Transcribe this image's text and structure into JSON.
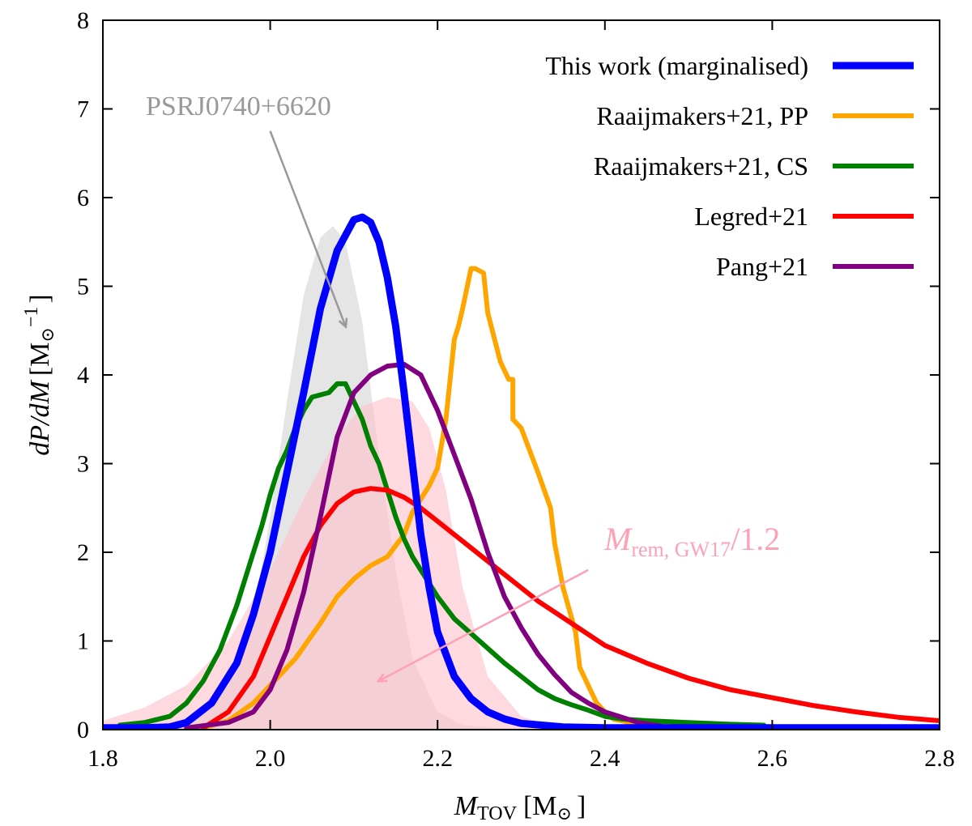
{
  "chart_data": {
    "type": "line",
    "title": "",
    "xlabel": {
      "main": "M",
      "sub": "TOV",
      "unit": "[M",
      "sun": "⊙",
      "close": "]"
    },
    "ylabel": {
      "main": "dP/dM",
      "unit": "[M",
      "sun": "⊙",
      "exp": "−1",
      "close": "]"
    },
    "xlim": [
      1.8,
      2.8
    ],
    "ylim": [
      0,
      8
    ],
    "xticks": [
      1.8,
      2.0,
      2.2,
      2.4,
      2.6,
      2.8
    ],
    "xtick_labels": [
      "1.8",
      "2.0",
      "2.2",
      "2.4",
      "2.6",
      "2.8"
    ],
    "yticks": [
      0,
      1,
      2,
      3,
      4,
      5,
      6,
      7,
      8
    ],
    "ytick_labels": [
      "0",
      "1",
      "2",
      "3",
      "4",
      "5",
      "6",
      "7",
      "8"
    ],
    "grid": false,
    "legend_position": "top-right",
    "filled_areas": [
      {
        "name": "PSRJ0740+6620",
        "color": "#d3d3d3",
        "opacity": 0.6,
        "label_color": "#999999",
        "x": [
          1.8,
          1.9,
          1.95,
          1.98,
          2.0,
          2.02,
          2.04,
          2.06,
          2.075,
          2.09,
          2.11,
          2.13,
          2.15,
          2.17,
          2.2,
          2.23,
          2.3
        ],
        "y": [
          0.0,
          0.08,
          0.5,
          1.3,
          2.4,
          3.7,
          4.9,
          5.55,
          5.68,
          5.5,
          4.6,
          3.1,
          1.8,
          0.8,
          0.2,
          0.05,
          0.0
        ]
      },
      {
        "name": "M_rem,GW17/1.2",
        "color": "#ffc0cb",
        "opacity": 0.6,
        "label_color": "#ffa0b4",
        "label_main": "M",
        "label_sub": "rem, GW17",
        "label_suffix": "/1.2",
        "x": [
          1.8,
          1.85,
          1.9,
          1.95,
          2.0,
          2.04,
          2.08,
          2.11,
          2.14,
          2.17,
          2.19,
          2.21,
          2.23,
          2.26,
          2.3,
          2.34,
          2.38
        ],
        "y": [
          0.1,
          0.25,
          0.5,
          1.0,
          1.8,
          2.6,
          3.3,
          3.65,
          3.75,
          3.7,
          3.4,
          2.7,
          1.6,
          0.6,
          0.15,
          0.03,
          0.0
        ]
      }
    ],
    "series": [
      {
        "name": "This work (marginalised)",
        "color": "#0000ff",
        "width": 9,
        "x": [
          1.8,
          1.85,
          1.88,
          1.9,
          1.93,
          1.96,
          1.98,
          2.0,
          2.02,
          2.04,
          2.06,
          2.08,
          2.1,
          2.11,
          2.12,
          2.13,
          2.14,
          2.15,
          2.16,
          2.17,
          2.18,
          2.19,
          2.2,
          2.22,
          2.24,
          2.26,
          2.28,
          2.3,
          2.35,
          2.4,
          2.5,
          2.8
        ],
        "y": [
          0.02,
          0.02,
          0.03,
          0.08,
          0.3,
          0.75,
          1.3,
          2.0,
          2.9,
          3.8,
          4.75,
          5.4,
          5.75,
          5.78,
          5.72,
          5.5,
          5.1,
          4.55,
          3.8,
          3.0,
          2.2,
          1.6,
          1.1,
          0.6,
          0.35,
          0.2,
          0.12,
          0.07,
          0.03,
          0.02,
          0.02,
          0.02
        ]
      },
      {
        "name": "Raaijmakers+21, PP",
        "color": "#ffa500",
        "width": 6,
        "x": [
          1.92,
          1.95,
          1.98,
          2.0,
          2.03,
          2.06,
          2.08,
          2.1,
          2.12,
          2.14,
          2.16,
          2.17,
          2.18,
          2.19,
          2.2,
          2.21,
          2.22,
          2.225,
          2.23,
          2.24,
          2.245,
          2.255,
          2.26,
          2.275,
          2.285,
          2.29,
          2.29,
          2.3,
          2.32,
          2.335,
          2.34,
          2.35,
          2.365,
          2.37,
          2.38,
          2.39,
          2.4,
          2.41,
          2.43,
          2.45,
          2.5
        ],
        "y": [
          0.02,
          0.1,
          0.3,
          0.5,
          0.8,
          1.2,
          1.5,
          1.7,
          1.85,
          1.95,
          2.2,
          2.45,
          2.6,
          2.75,
          2.95,
          3.5,
          4.4,
          4.55,
          4.75,
          5.2,
          5.2,
          5.15,
          4.7,
          4.15,
          3.95,
          3.95,
          3.5,
          3.4,
          2.9,
          2.5,
          2.1,
          1.6,
          1.1,
          0.7,
          0.5,
          0.3,
          0.2,
          0.12,
          0.08,
          0.05,
          0.03
        ]
      },
      {
        "name": "Raaijmakers+21, CS",
        "color": "#008000",
        "width": 6,
        "x": [
          1.82,
          1.85,
          1.88,
          1.9,
          1.92,
          1.94,
          1.96,
          1.97,
          1.98,
          1.99,
          2.0,
          2.01,
          2.02,
          2.03,
          2.04,
          2.05,
          2.07,
          2.08,
          2.09,
          2.1,
          2.11,
          2.12,
          2.13,
          2.14,
          2.15,
          2.16,
          2.17,
          2.18,
          2.19,
          2.2,
          2.22,
          2.25,
          2.28,
          2.3,
          2.32,
          2.34,
          2.36,
          2.38,
          2.4,
          2.42,
          2.45,
          2.5,
          2.55,
          2.59
        ],
        "y": [
          0.05,
          0.08,
          0.15,
          0.3,
          0.55,
          0.9,
          1.4,
          1.7,
          2.0,
          2.3,
          2.65,
          2.95,
          3.15,
          3.4,
          3.6,
          3.75,
          3.8,
          3.9,
          3.9,
          3.7,
          3.5,
          3.2,
          3.0,
          2.7,
          2.4,
          2.15,
          1.95,
          1.8,
          1.65,
          1.5,
          1.25,
          1.0,
          0.75,
          0.6,
          0.45,
          0.35,
          0.28,
          0.22,
          0.15,
          0.12,
          0.1,
          0.08,
          0.06,
          0.05
        ]
      },
      {
        "name": "Legred+21",
        "color": "#ff0000",
        "width": 6,
        "x": [
          1.92,
          1.95,
          1.98,
          2.0,
          2.02,
          2.04,
          2.06,
          2.08,
          2.1,
          2.12,
          2.14,
          2.16,
          2.18,
          2.2,
          2.24,
          2.28,
          2.32,
          2.36,
          2.4,
          2.45,
          2.5,
          2.55,
          2.6,
          2.65,
          2.7,
          2.75,
          2.8
        ],
        "y": [
          0.02,
          0.2,
          0.6,
          1.05,
          1.5,
          1.95,
          2.3,
          2.55,
          2.68,
          2.72,
          2.7,
          2.62,
          2.5,
          2.35,
          2.05,
          1.75,
          1.45,
          1.2,
          0.95,
          0.75,
          0.58,
          0.45,
          0.36,
          0.27,
          0.2,
          0.14,
          0.1
        ]
      },
      {
        "name": "Pang+21",
        "color": "#800080",
        "width": 6,
        "x": [
          1.9,
          1.95,
          1.98,
          2.0,
          2.02,
          2.04,
          2.06,
          2.08,
          2.1,
          2.12,
          2.14,
          2.16,
          2.18,
          2.2,
          2.22,
          2.24,
          2.26,
          2.28,
          2.3,
          2.32,
          2.34,
          2.36,
          2.38,
          2.4,
          2.44,
          2.48
        ],
        "y": [
          0.02,
          0.08,
          0.2,
          0.45,
          0.9,
          1.55,
          2.4,
          3.3,
          3.8,
          4.0,
          4.1,
          4.12,
          4.0,
          3.6,
          3.1,
          2.6,
          2.0,
          1.5,
          1.15,
          0.85,
          0.62,
          0.42,
          0.3,
          0.2,
          0.08,
          0.02
        ]
      }
    ],
    "annotations": [
      {
        "label": "PSRJ0740+6620",
        "target_x": 2.09,
        "target_y": 4.55,
        "from_x": 2.0,
        "from_y": 6.75,
        "color": "#999999"
      },
      {
        "label": "M_rem,GW17/1.2",
        "target_x": 2.13,
        "target_y": 0.55,
        "from_x": 2.38,
        "from_y": 1.8,
        "color": "#ffa0b4"
      }
    ]
  }
}
